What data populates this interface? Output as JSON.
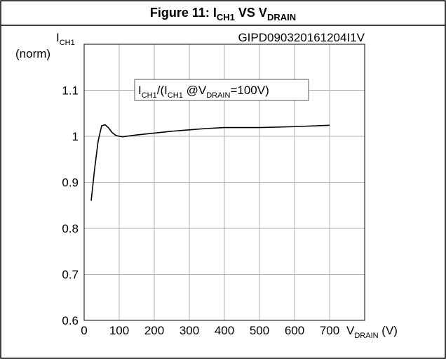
{
  "chart_data": {
    "type": "line",
    "title": [
      "Figure 11: I",
      "CH1",
      " VS V",
      "DRAIN"
    ],
    "code": "GIPD090320161204I1V",
    "annotation": [
      "I",
      "CH1",
      "/(I",
      "CH1",
      " @V",
      "DRAIN",
      "=100V)"
    ],
    "y_label": [
      "I",
      "CH1"
    ],
    "y_label_unit": "(norm)",
    "x_label": [
      "V",
      "DRAIN",
      " (V)"
    ],
    "x": [
      20,
      30,
      40,
      50,
      60,
      70,
      80,
      90,
      100,
      110,
      150,
      200,
      250,
      300,
      350,
      400,
      500,
      600,
      700
    ],
    "series": [
      {
        "name": "ICH1",
        "color": "#000000",
        "values": [
          0.86,
          0.93,
          0.99,
          1.023,
          1.025,
          1.018,
          1.008,
          1.002,
          1.0,
          0.999,
          1.003,
          1.007,
          1.011,
          1.014,
          1.017,
          1.019,
          1.019,
          1.021,
          1.024
        ]
      }
    ],
    "xlim": [
      0,
      800
    ],
    "xticks": [
      0,
      100,
      200,
      300,
      400,
      500,
      600,
      700
    ],
    "ylim": [
      0.6,
      1.2
    ],
    "yticks": [
      0.6,
      0.7,
      0.8,
      0.9,
      1,
      1.1
    ],
    "grid": true
  }
}
